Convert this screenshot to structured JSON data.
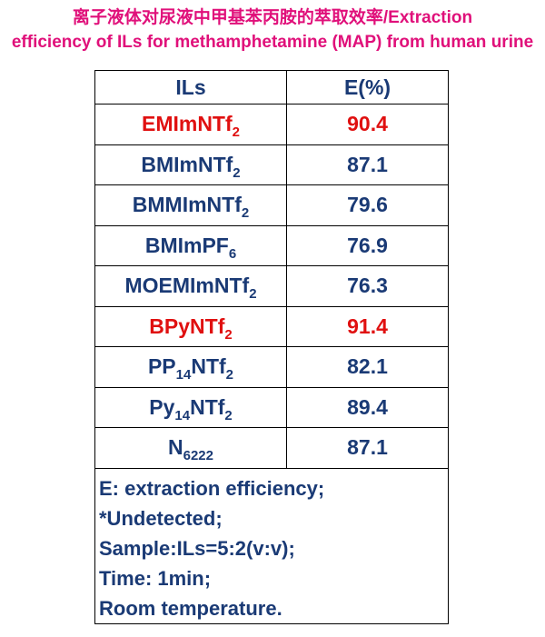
{
  "title_line1": "离子液体对尿液中甲基苯丙胺的萃取效率/Extraction",
  "title_line2": "efficiency of ILs for methamphetamine (MAP) from human urine",
  "colors": {
    "title": "#e0107a",
    "text": "#1a3a75",
    "highlight": "#e01010"
  },
  "chart_data": {
    "type": "table",
    "columns": [
      "ILs",
      "E(%)"
    ],
    "rows": [
      {
        "il": "EMImNTf",
        "sub": "2",
        "post": "",
        "e": "90.4",
        "highlight": true
      },
      {
        "il": "BMImNTf",
        "sub": "2",
        "post": "",
        "e": "87.1",
        "highlight": false
      },
      {
        "il": "BMMImNTf",
        "sub": "2",
        "post": "",
        "e": "79.6",
        "highlight": false
      },
      {
        "il": "BMImPF",
        "sub": "6",
        "post": "",
        "e": "76.9",
        "highlight": false
      },
      {
        "il": "MOEMImNTf",
        "sub": "2",
        "post": "",
        "e": "76.3",
        "highlight": false
      },
      {
        "il": "BPyNTf",
        "sub": "2",
        "post": "",
        "e": "91.4",
        "highlight": true
      },
      {
        "il": "PP",
        "sub": "14",
        "post": "NTf",
        "sub2": "2",
        "e": "82.1",
        "highlight": false
      },
      {
        "il": "Py",
        "sub": "14",
        "post": "NTf",
        "sub2": "2",
        "e": "89.4",
        "highlight": false
      },
      {
        "il": "N",
        "sub": "6222",
        "post": "",
        "e": "87.1",
        "highlight": false
      }
    ]
  },
  "notes": [
    "E: extraction efficiency;",
    "*Undetected;",
    "Sample:ILs=5:2(v:v);",
    "Time: 1min;",
    "Room temperature."
  ]
}
